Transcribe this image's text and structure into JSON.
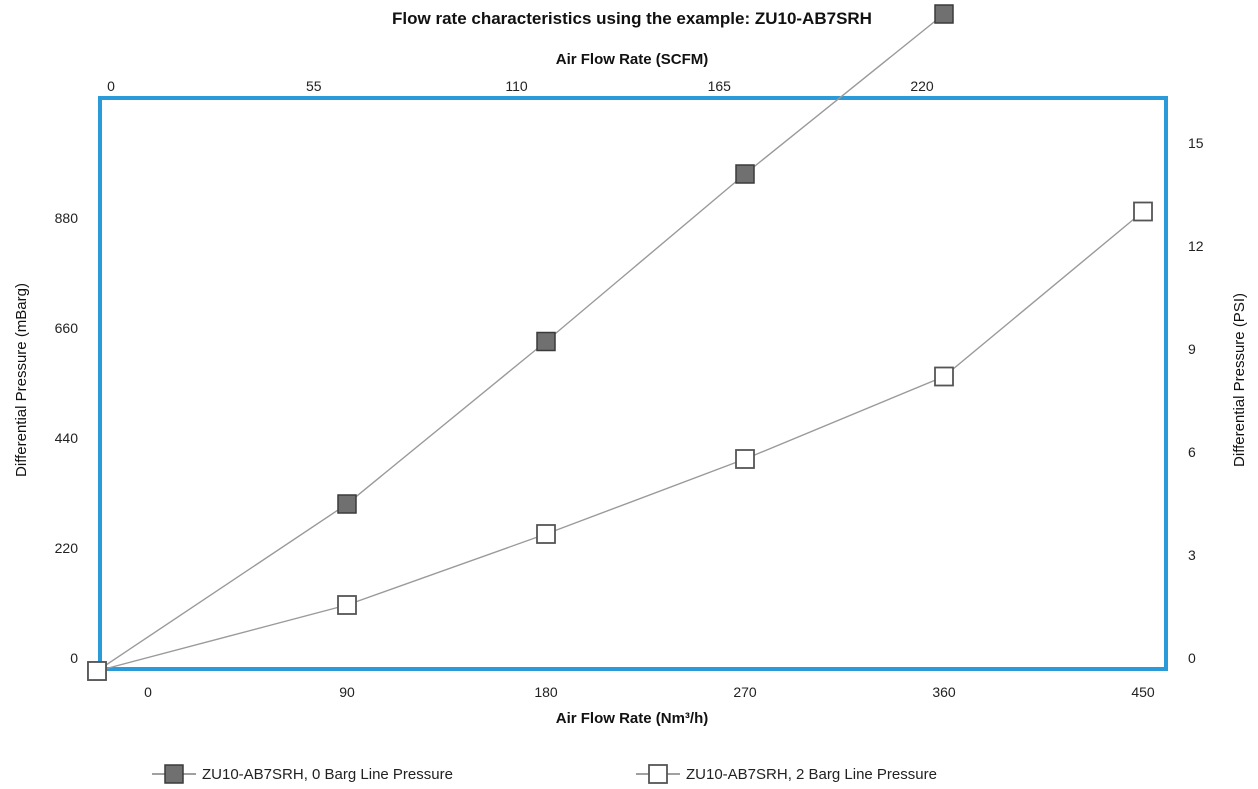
{
  "chart_data": {
    "type": "line",
    "title": "Flow rate characteristics using the example: ZU10-AB7SRH",
    "xlabel": "Air Flow Rate (Nm³/h)",
    "x2label": "Air Flow Rate (SCFM)",
    "ylabel": "Differential Pressure (mBarg)",
    "y2label": "Differential Pressure (PSI)",
    "x_ticks": [
      "0",
      "90",
      "180",
      "270",
      "360",
      "450"
    ],
    "x2_ticks": [
      "0",
      "55",
      "110",
      "165",
      "220"
    ],
    "y_ticks": [
      "0",
      "220",
      "440",
      "660",
      "880"
    ],
    "y2_ticks": [
      "0",
      "3",
      "6",
      "9",
      "12",
      "15"
    ],
    "xlim": [
      0,
      450
    ],
    "ylim": [
      0,
      1100
    ],
    "grid": false,
    "legend_position": "bottom",
    "frame_color": "#2a9ad8",
    "series": [
      {
        "name": "ZU10-AB7SRH, 0 Barg  Line Pressure",
        "marker": "filled-square",
        "marker_color": "#707070",
        "line_color": "#9a9a9a",
        "x": [
          0,
          90,
          180,
          270,
          360
        ],
        "y": [
          0,
          330,
          655,
          990,
          1310
        ]
      },
      {
        "name": "ZU10-AB7SRH, 2 Barg  Line Pressure",
        "marker": "hollow-square",
        "marker_color": "#ffffff",
        "line_color": "#9a9a9a",
        "x": [
          0,
          90,
          180,
          270,
          360,
          450
        ],
        "y": [
          0,
          128,
          270,
          420,
          585,
          915
        ]
      }
    ]
  }
}
